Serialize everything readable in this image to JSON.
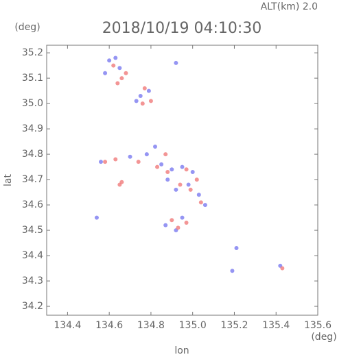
{
  "chart_data": {
    "type": "scatter",
    "title": "2018/10/19 04:10:30",
    "subtitle": "ALT(km) 2.0",
    "x_label": "lon",
    "y_label": "lat",
    "x_unit": "(deg)",
    "y_unit": "(deg)",
    "xlim": [
      134.3,
      135.6
    ],
    "ylim": [
      34.165,
      35.23
    ],
    "xticks": [
      134.4,
      134.6,
      134.8,
      {
        "value": 135,
        "label": "135.0"
      },
      135.2,
      135.4,
      135.6
    ],
    "yticks": [
      34.2,
      34.3,
      34.4,
      34.5,
      34.6,
      34.7,
      34.8,
      34.9,
      {
        "value": 35,
        "label": "35.0"
      },
      35.1,
      35.2
    ],
    "series": [
      {
        "color": "#7b7bf0",
        "x": [
          134.6,
          134.63,
          134.65,
          134.58,
          134.75,
          134.79,
          134.73,
          134.92,
          134.56,
          134.7,
          134.78,
          134.85,
          134.9,
          134.95,
          135,
          134.88,
          134.92,
          134.98,
          135.03,
          135.06,
          134.87,
          134.92,
          134.95,
          134.54,
          135.19,
          135.21,
          135.42,
          134.82
        ],
        "y": [
          35.17,
          35.18,
          35.14,
          35.12,
          35.03,
          35.05,
          35.01,
          35.16,
          34.77,
          34.79,
          34.8,
          34.76,
          34.74,
          34.75,
          34.73,
          34.7,
          34.66,
          34.68,
          34.64,
          34.6,
          34.52,
          34.5,
          34.55,
          34.55,
          34.34,
          34.43,
          34.36,
          34.83
        ]
      },
      {
        "color": "#f07b7b",
        "x": [
          134.62,
          134.66,
          134.68,
          134.64,
          134.77,
          134.8,
          134.76,
          134.58,
          134.63,
          134.66,
          134.74,
          134.83,
          134.88,
          134.97,
          135.02,
          134.94,
          134.99,
          135.04,
          134.9,
          134.93,
          134.97,
          134.65,
          135.43,
          134.87
        ],
        "y": [
          35.15,
          35.1,
          35.12,
          35.08,
          35.06,
          35.01,
          35.0,
          34.77,
          34.78,
          34.69,
          34.77,
          34.75,
          34.73,
          34.74,
          34.7,
          34.68,
          34.66,
          34.61,
          34.54,
          34.51,
          34.53,
          34.68,
          34.35,
          34.8
        ]
      }
    ]
  }
}
